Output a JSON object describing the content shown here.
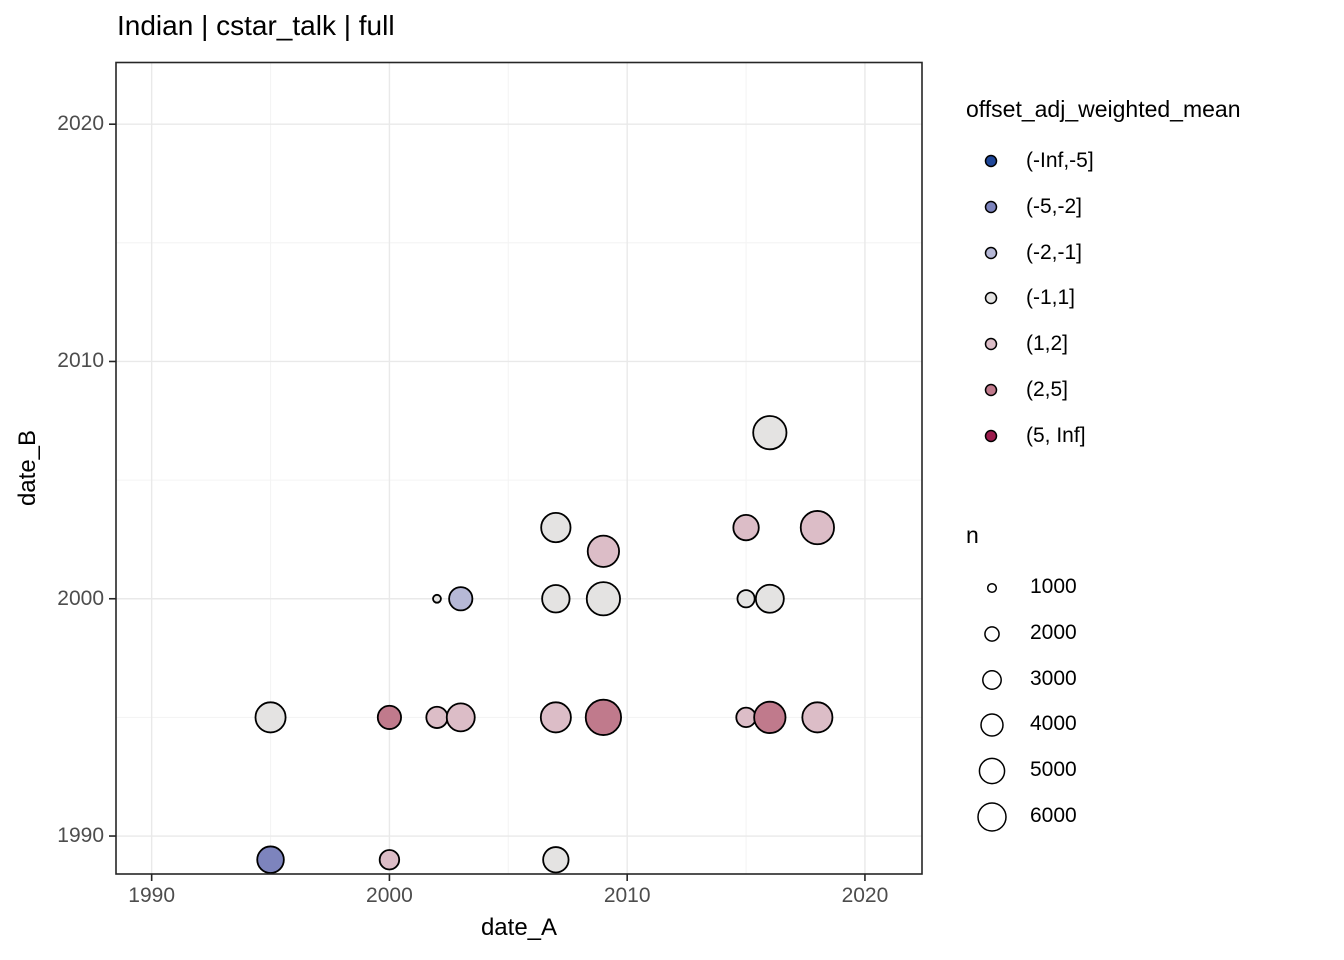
{
  "page": {
    "background": "#ffffff",
    "panel_background": "#ffffff",
    "panel_border_color": "#262626",
    "grid_major_color": "#e9e9e9",
    "grid_minor_color": "#f4f4f4",
    "tick_color": "#262626",
    "tick_label_color": "#4d4d4d",
    "point_stroke_color": "#000000"
  },
  "chart_data": {
    "type": "scatter",
    "title": "Indian | cstar_talk | full",
    "xlabel": "date_A",
    "ylabel": "date_B",
    "xlim": [
      1988.5,
      2022.4
    ],
    "ylim": [
      1988.4,
      2022.6
    ],
    "x_ticks": [
      1990,
      2000,
      2010,
      2020
    ],
    "y_ticks": [
      1990,
      2000,
      2010,
      2020
    ],
    "x_minor_ticks": [
      1995,
      2005,
      2015
    ],
    "y_minor_ticks": [
      1995,
      2005,
      2015
    ],
    "grid": true,
    "legend_position": "right",
    "size_variable": "n",
    "color_variable": "offset_adj_weighted_mean",
    "points": [
      {
        "date_A": 1995,
        "date_B": 1989,
        "n": 5500,
        "bin": "(-5,-2]"
      },
      {
        "date_A": 1995,
        "date_B": 1995,
        "n": 6800,
        "bin": "(-1,1]"
      },
      {
        "date_A": 2000,
        "date_B": 1989,
        "n": 3300,
        "bin": "(1,2]"
      },
      {
        "date_A": 2000,
        "date_B": 1995,
        "n": 4400,
        "bin": "(2,5]"
      },
      {
        "date_A": 2002,
        "date_B": 1995,
        "n": 3800,
        "bin": "(1,2]"
      },
      {
        "date_A": 2002,
        "date_B": 2000,
        "n": 900,
        "bin": "(-1,1]"
      },
      {
        "date_A": 2003,
        "date_B": 1995,
        "n": 6000,
        "bin": "(1,2]"
      },
      {
        "date_A": 2003,
        "date_B": 2000,
        "n": 4400,
        "bin": "(-2,-1]"
      },
      {
        "date_A": 2007,
        "date_B": 1989,
        "n": 5100,
        "bin": "(-1,1]"
      },
      {
        "date_A": 2007,
        "date_B": 1995,
        "n": 6800,
        "bin": "(1,2]"
      },
      {
        "date_A": 2007,
        "date_B": 2000,
        "n": 5800,
        "bin": "(-1,1]"
      },
      {
        "date_A": 2007,
        "date_B": 2003,
        "n": 6500,
        "bin": "(-1,1]"
      },
      {
        "date_A": 2009,
        "date_B": 1995,
        "n": 9000,
        "bin": "(2,5]"
      },
      {
        "date_A": 2009,
        "date_B": 2000,
        "n": 8100,
        "bin": "(-1,1]"
      },
      {
        "date_A": 2009,
        "date_B": 2002,
        "n": 7300,
        "bin": "(1,2]"
      },
      {
        "date_A": 2015,
        "date_B": 1995,
        "n": 3300,
        "bin": "(1,2]"
      },
      {
        "date_A": 2015,
        "date_B": 2000,
        "n": 2700,
        "bin": "(-1,1]"
      },
      {
        "date_A": 2015,
        "date_B": 2003,
        "n": 5100,
        "bin": "(1,2]"
      },
      {
        "date_A": 2016,
        "date_B": 1995,
        "n": 7300,
        "bin": "(2,5]"
      },
      {
        "date_A": 2016,
        "date_B": 2000,
        "n": 6000,
        "bin": "(-1,1]"
      },
      {
        "date_A": 2016,
        "date_B": 2007,
        "n": 8100,
        "bin": "(-1,1]"
      },
      {
        "date_A": 2018,
        "date_B": 1995,
        "n": 6800,
        "bin": "(1,2]"
      },
      {
        "date_A": 2018,
        "date_B": 2003,
        "n": 8100,
        "bin": "(1,2]"
      }
    ]
  },
  "legend_color": {
    "title": "offset_adj_weighted_mean",
    "entries": [
      {
        "label": "(-Inf,-5]",
        "color": "#1f4799"
      },
      {
        "label": "(-5,-2]",
        "color": "#7d84bd"
      },
      {
        "label": "(-2,-1]",
        "color": "#b6b8d6"
      },
      {
        "label": "(-1,1]",
        "color": "#e4e3e2"
      },
      {
        "label": "(1,2]",
        "color": "#dcbdc7"
      },
      {
        "label": "(2,5]",
        "color": "#c07a8c"
      },
      {
        "label": "(5, Inf]",
        "color": "#9c1c4d"
      }
    ]
  },
  "legend_size": {
    "title": "n",
    "entries": [
      {
        "label": "1000",
        "value": 1000
      },
      {
        "label": "2000",
        "value": 2000
      },
      {
        "label": "3000",
        "value": 3000
      },
      {
        "label": "4000",
        "value": 4000
      },
      {
        "label": "5000",
        "value": 5000
      },
      {
        "label": "6000",
        "value": 6000
      }
    ]
  }
}
